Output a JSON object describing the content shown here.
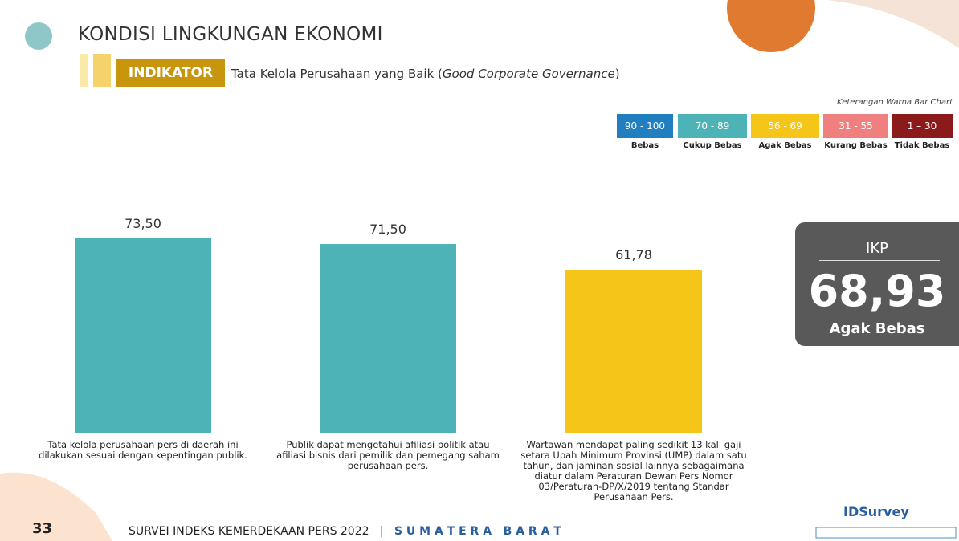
{
  "header": {
    "title": "KONDISI LINGKUNGAN EKONOMI",
    "indicator_label": "INDIKATOR",
    "indicator_text": [
      "Tata Kelola Perusahaan yang Baik (",
      "Good Corporate Governance",
      ")"
    ]
  },
  "legend": {
    "caption": "Keterangan Warna Bar Chart",
    "items": [
      {
        "range": "90 - 100",
        "label": "Bebas",
        "color": "#1f7fc0"
      },
      {
        "range": "70 - 89",
        "label": "Cukup Bebas",
        "color": "#4db3b6"
      },
      {
        "range": "56 - 69",
        "label": "Agak Bebas",
        "color": "#f5c518"
      },
      {
        "range": "31 - 55",
        "label": "Kurang Bebas",
        "color": "#f08080"
      },
      {
        "range": "1 – 30",
        "label": "Tidak Bebas",
        "color": "#8b1a1a"
      }
    ]
  },
  "chart_data": {
    "type": "bar",
    "categories": [
      "Tata kelola perusahaan pers di daerah ini dilakukan sesuai dengan kepentingan publik.",
      "Publik dapat mengetahui afiliasi politik atau afiliasi bisnis dari pemilik dan pemegang saham perusahaan pers.",
      "Wartawan mendapat paling sedikit 13 kali gaji setara Upah Minimum Provinsi (UMP) dalam satu tahun, dan jaminan sosial lainnya sebagaimana diatur dalam Peraturan Dewan Pers Nomor 03/Peraturan-DP/X/2019 tentang Standar Perusahaan Pers."
    ],
    "values": [
      73.5,
      71.5,
      61.78
    ],
    "value_labels": [
      "73,50",
      "71,50",
      "61,78"
    ],
    "colors": [
      "#4db3b6",
      "#4db3b6",
      "#f5c518"
    ]
  },
  "ikp": {
    "label": "IKP",
    "value": "68,93",
    "category": "Agak Bebas"
  },
  "footer": {
    "page": "33",
    "survey": "SURVEI INDEKS KEMERDEKAAN PERS 2022",
    "separator": "|",
    "region": "S U M A T E R A   B A R A T"
  },
  "logo": {
    "brand": "IDSurvey"
  }
}
